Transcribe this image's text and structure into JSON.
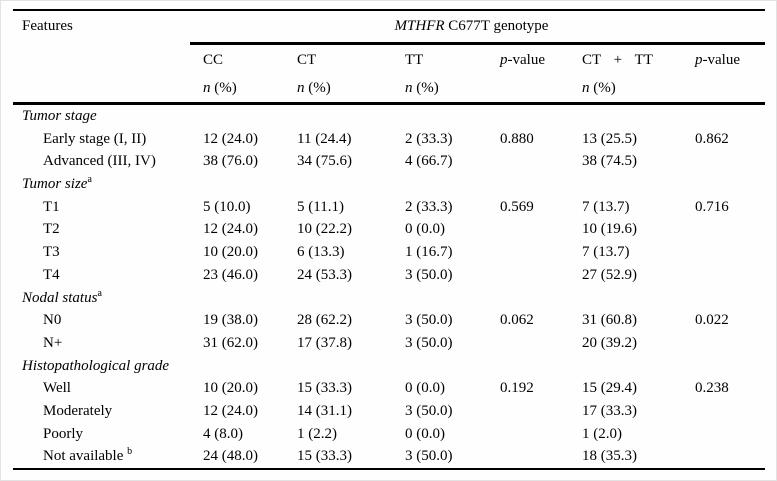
{
  "page": {
    "background": "#fefefe",
    "rule_color": "#000000",
    "text_color": "#000000"
  },
  "header": {
    "features_label": "Features",
    "genotype_title": [
      {
        "t": "MTHFR",
        "i": true
      },
      {
        "t": " C677T genotype"
      }
    ],
    "columns": [
      {
        "name": "cc",
        "label": [
          {
            "t": "CC"
          }
        ],
        "sub": [
          {
            "t": "n",
            "i": true
          },
          {
            "t": " (%)"
          }
        ],
        "spread": false
      },
      {
        "name": "ct",
        "label": [
          {
            "t": "CT"
          }
        ],
        "sub": [
          {
            "t": "n",
            "i": true
          },
          {
            "t": " (%)"
          }
        ],
        "spread": false
      },
      {
        "name": "tt",
        "label": [
          {
            "t": "TT"
          }
        ],
        "sub": [
          {
            "t": "n",
            "i": true
          },
          {
            "t": " (%)"
          }
        ],
        "spread": false
      },
      {
        "name": "p-value-1",
        "label": [
          {
            "t": "p",
            "i": true
          },
          {
            "t": "-value"
          }
        ],
        "sub": [],
        "spread": false
      },
      {
        "name": "ct-plus-tt",
        "label": [
          {
            "t": "CT + TT"
          }
        ],
        "sub": [
          {
            "t": "n",
            "i": true
          },
          {
            "t": " (%)"
          }
        ],
        "spread": true
      },
      {
        "name": "p-value-2",
        "label": [
          {
            "t": "p",
            "i": true
          },
          {
            "t": "-value"
          }
        ],
        "sub": [],
        "spread": false
      }
    ]
  },
  "rows": [
    {
      "type": "section",
      "label": [
        {
          "t": "Tumor stage",
          "i": true
        }
      ],
      "cells": [
        "",
        "",
        "",
        "",
        "",
        ""
      ]
    },
    {
      "type": "data",
      "label": [
        {
          "t": "Early stage (I, II)"
        }
      ],
      "cells": [
        "12 (24.0)",
        "11 (24.4)",
        "2 (33.3)",
        "0.880",
        "13 (25.5)",
        "0.862"
      ]
    },
    {
      "type": "data",
      "label": [
        {
          "t": "Advanced (III, IV)"
        }
      ],
      "cells": [
        "38 (76.0)",
        "34 (75.6)",
        "4 (66.7)",
        "",
        "38 (74.5)",
        ""
      ]
    },
    {
      "type": "section",
      "label": [
        {
          "t": "Tumor size",
          "i": true
        },
        {
          "t": "a",
          "sup": true
        }
      ],
      "cells": [
        "",
        "",
        "",
        "",
        "",
        ""
      ]
    },
    {
      "type": "data",
      "label": [
        {
          "t": "T1"
        }
      ],
      "cells": [
        "5 (10.0)",
        "5 (11.1)",
        "2 (33.3)",
        "0.569",
        "7 (13.7)",
        "0.716"
      ]
    },
    {
      "type": "data",
      "label": [
        {
          "t": "T2"
        }
      ],
      "cells": [
        "12 (24.0)",
        "10 (22.2)",
        "0 (0.0)",
        "",
        "10 (19.6)",
        ""
      ]
    },
    {
      "type": "data",
      "label": [
        {
          "t": "T3"
        }
      ],
      "cells": [
        "10 (20.0)",
        "6 (13.3)",
        "1 (16.7)",
        "",
        "7 (13.7)",
        ""
      ]
    },
    {
      "type": "data",
      "label": [
        {
          "t": "T4"
        }
      ],
      "cells": [
        "23 (46.0)",
        "24 (53.3)",
        "3 (50.0)",
        "",
        "27 (52.9)",
        ""
      ]
    },
    {
      "type": "section",
      "label": [
        {
          "t": "Nodal status",
          "i": true
        },
        {
          "t": "a",
          "sup": true
        }
      ],
      "cells": [
        "",
        "",
        "",
        "",
        "",
        ""
      ]
    },
    {
      "type": "data",
      "label": [
        {
          "t": "N0"
        }
      ],
      "cells": [
        "19 (38.0)",
        "28 (62.2)",
        "3 (50.0)",
        "0.062",
        "31 (60.8)",
        "0.022"
      ]
    },
    {
      "type": "data",
      "label": [
        {
          "t": "N+"
        }
      ],
      "cells": [
        "31 (62.0)",
        "17 (37.8)",
        "3 (50.0)",
        "",
        "20 (39.2)",
        ""
      ]
    },
    {
      "type": "section",
      "label": [
        {
          "t": "Histopathological grade",
          "i": true
        }
      ],
      "cells": [
        "",
        "",
        "",
        "",
        "",
        ""
      ]
    },
    {
      "type": "data",
      "label": [
        {
          "t": "Well"
        }
      ],
      "cells": [
        "10 (20.0)",
        "15 (33.3)",
        "0 (0.0)",
        "0.192",
        "15 (29.4)",
        "0.238"
      ]
    },
    {
      "type": "data",
      "label": [
        {
          "t": "Moderately"
        }
      ],
      "cells": [
        "12 (24.0)",
        "14 (31.1)",
        "3 (50.0)",
        "",
        "17 (33.3)",
        ""
      ]
    },
    {
      "type": "data",
      "label": [
        {
          "t": "Poorly"
        }
      ],
      "cells": [
        "4 (8.0)",
        "1 (2.2)",
        "0 (0.0)",
        "",
        "1 (2.0)",
        ""
      ]
    },
    {
      "type": "data",
      "label": [
        {
          "t": "Not available "
        },
        {
          "t": "b",
          "sup": true
        }
      ],
      "cells": [
        "24 (48.0)",
        "15 (33.3)",
        "3 (50.0)",
        "",
        "18 (35.3)",
        ""
      ]
    }
  ]
}
